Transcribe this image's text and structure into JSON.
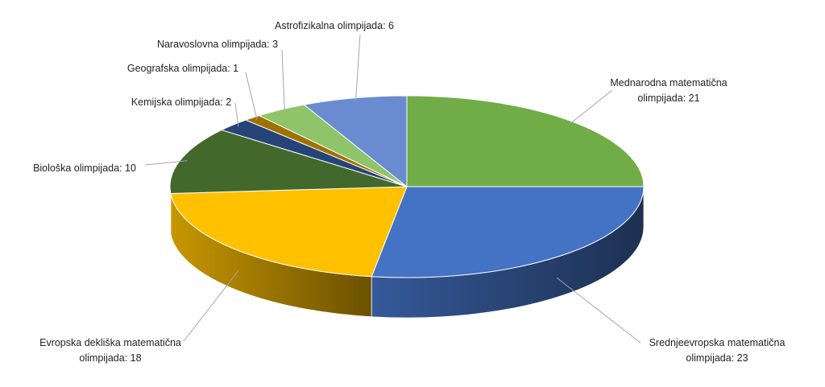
{
  "chart_data": {
    "type": "pie",
    "title": "",
    "slices": [
      {
        "name": "Mednarodna  matematična olimpijada",
        "value": 21,
        "color": "#70ad47",
        "lines": [
          "Mednarodna  matematična",
          "olimpijada: 21"
        ]
      },
      {
        "name": "Srednjeevropska matematična olimpijada",
        "value": 23,
        "color": "#4472c4",
        "lines": [
          "Srednjeevropska matematična",
          "olimpijada: 23"
        ]
      },
      {
        "name": "Evropska dekliška matematična olimpijada",
        "value": 18,
        "color": "#ffc000",
        "lines": [
          "Evropska dekliška matematična",
          "olimpijada: 18"
        ]
      },
      {
        "name": "Biološka olimpijada",
        "value": 10,
        "color": "#43682b",
        "lines": [
          "Biološka olimpijada: 10"
        ]
      },
      {
        "name": "Kemijska olimpijada",
        "value": 2,
        "color": "#264478",
        "lines": [
          "Kemijska olimpijada: 2"
        ]
      },
      {
        "name": "Geografska olimpijada",
        "value": 1,
        "color": "#9e7200",
        "lines": [
          "Geografska olimpijada: 1"
        ]
      },
      {
        "name": "Naravoslovna olimpijada",
        "value": 3,
        "color": "#8fc46a",
        "lines": [
          "Naravoslovna olimpijada: 3"
        ]
      },
      {
        "name": "Astrofizikalna olimpijada",
        "value": 6,
        "color": "#6a8bd0",
        "lines": [
          "Astrofizikalna olimpijada: 6"
        ]
      }
    ]
  }
}
